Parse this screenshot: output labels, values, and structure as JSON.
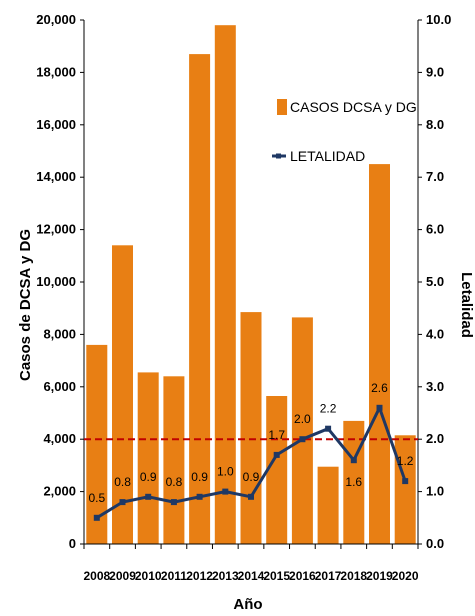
{
  "chart_data": {
    "type": "bar",
    "categories": [
      "2008",
      "2009",
      "2010",
      "2011",
      "2012",
      "2013",
      "2014",
      "2015",
      "2016",
      "2017",
      "2018",
      "2019",
      "2020"
    ],
    "series": [
      {
        "name": "CASOS DCSA y DG",
        "type": "bar",
        "axis": "left",
        "color": "#E87F14",
        "values": [
          7600,
          11400,
          6550,
          6400,
          18700,
          19800,
          8850,
          5650,
          8650,
          2950,
          4700,
          14500,
          4150
        ]
      },
      {
        "name": "LETALIDAD",
        "type": "line",
        "axis": "right",
        "color": "#1F3864",
        "values": [
          0.5,
          0.8,
          0.9,
          0.8,
          0.9,
          1.0,
          0.9,
          1.7,
          2.0,
          2.2,
          1.6,
          2.6,
          1.2
        ],
        "labels": [
          "0.5",
          "0.8",
          "0.9",
          "0.8",
          "0.9",
          "1.0",
          "0.9",
          "1.7",
          "2.0",
          "2.2",
          "1.6",
          "2.6",
          "1.2"
        ]
      }
    ],
    "reference_line": {
      "axis": "right",
      "value": 2.0,
      "color": "#C00000",
      "style": "dashed"
    },
    "xlabel": "Año",
    "ylabel": "Casos de DCSA y DG",
    "y2label": "Letalidad",
    "ylim": [
      0,
      20000
    ],
    "y2lim": [
      0,
      10
    ],
    "yticks": [
      "0",
      "2,000",
      "4,000",
      "6,000",
      "8,000",
      "10,000",
      "12,000",
      "14,000",
      "16,000",
      "18,000",
      "20,000"
    ],
    "y2ticks": [
      "0.0",
      "1.0",
      "2.0",
      "3.0",
      "4.0",
      "5.0",
      "6.0",
      "7.0",
      "8.0",
      "9.0",
      "10.0"
    ],
    "grid": false,
    "legend": "top-right"
  }
}
